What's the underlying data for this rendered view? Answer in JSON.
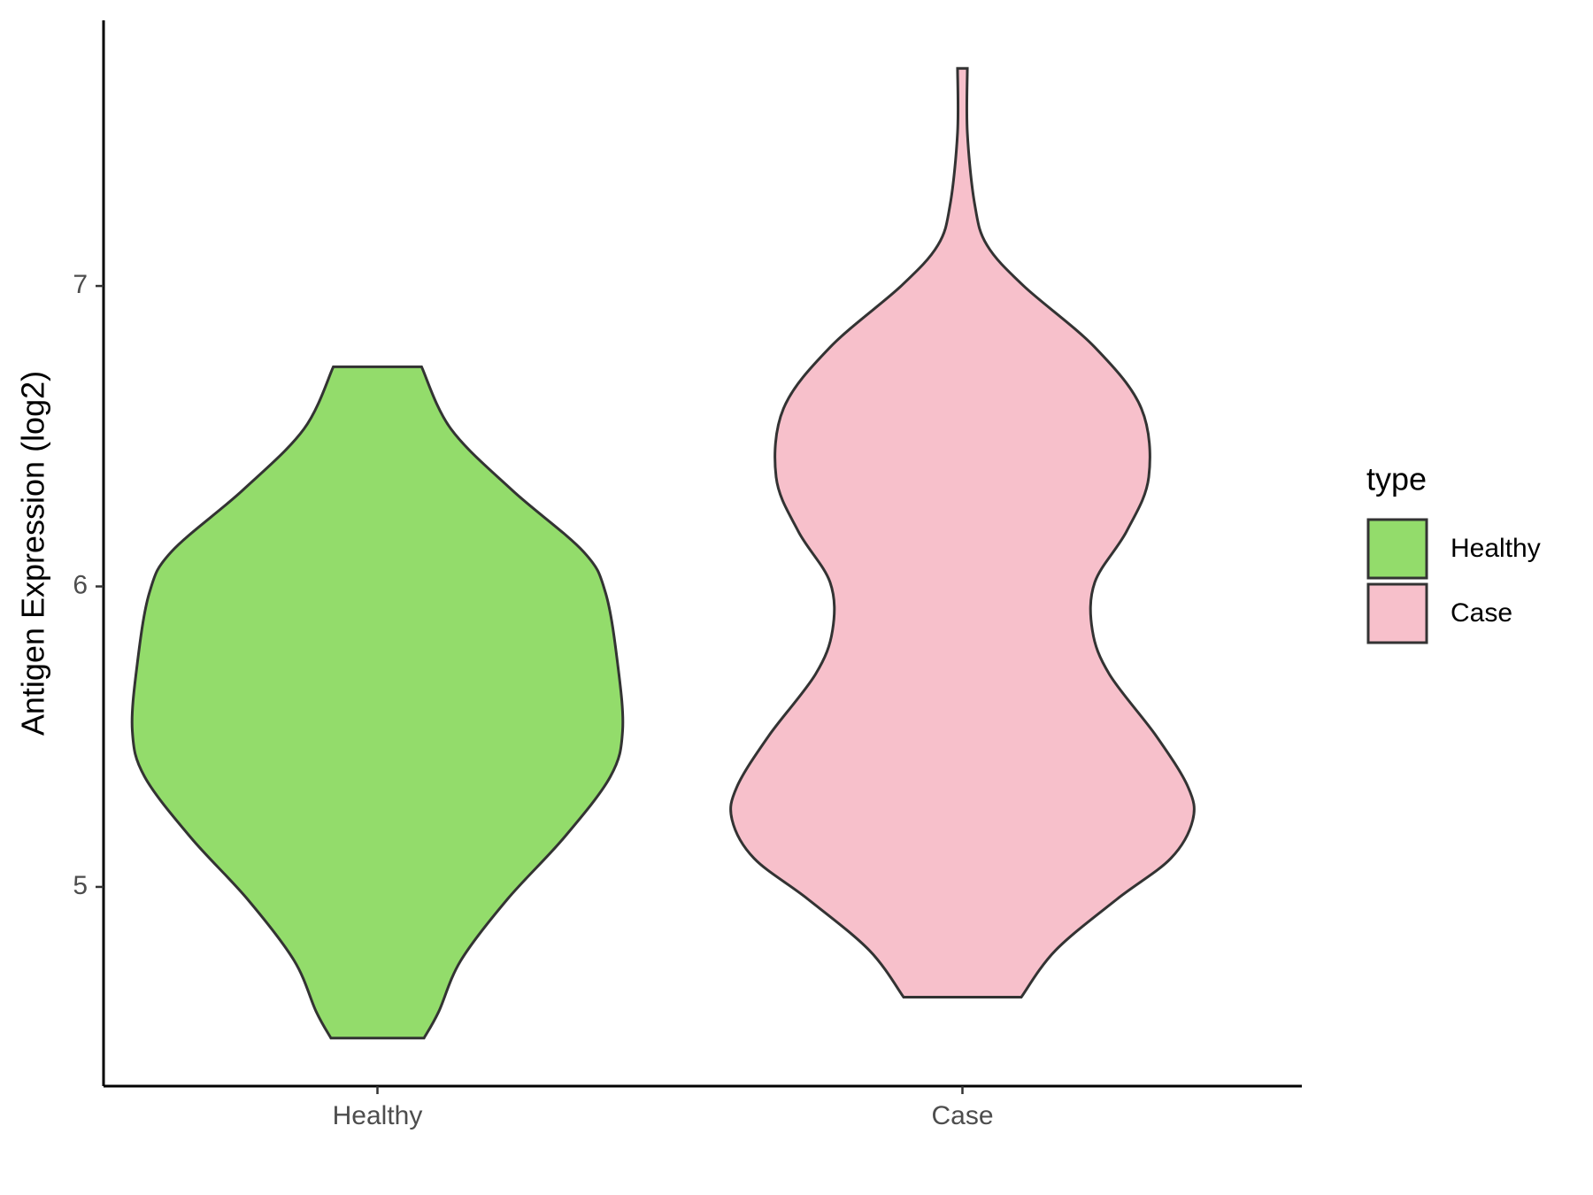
{
  "chart_data": {
    "type": "violin",
    "y_label": "Antigen Expression (log2)",
    "categories": [
      "Healthy",
      "Case"
    ],
    "legend_title": "type",
    "legend_position": "right",
    "ylim": [
      4.337,
      7.884
    ],
    "yticks": [
      5,
      6,
      7
    ],
    "series": [
      {
        "name": "Healthy",
        "color": "#93dc6b",
        "y": [
          6.731,
          6.524,
          6.32,
          6.116,
          5.98,
          5.741,
          5.52,
          5.367,
          5.163,
          4.959,
          4.755,
          4.585,
          4.497
        ],
        "density": [
          0.18,
          0.3,
          0.55,
          0.84,
          0.93,
          0.98,
          1.0,
          0.95,
          0.76,
          0.53,
          0.34,
          0.25,
          0.19
        ]
      },
      {
        "name": "Case",
        "color": "#f7c0cb",
        "y": [
          7.724,
          7.51,
          7.272,
          7.136,
          7.0,
          6.796,
          6.592,
          6.364,
          6.184,
          6.014,
          5.854,
          5.707,
          5.503,
          5.333,
          5.224,
          5.095,
          4.959,
          4.789,
          4.633
        ],
        "density": [
          0.02,
          0.02,
          0.05,
          0.1,
          0.25,
          0.54,
          0.73,
          0.76,
          0.67,
          0.54,
          0.53,
          0.6,
          0.79,
          0.92,
          0.94,
          0.85,
          0.63,
          0.38,
          0.24
        ]
      }
    ]
  }
}
